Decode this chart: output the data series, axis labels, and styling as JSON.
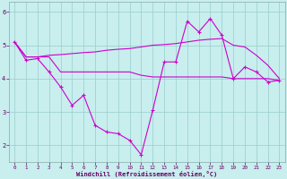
{
  "xlabel": "Windchill (Refroidissement éolien,°C)",
  "bg_color": "#c8eeee",
  "line_color": "#cc00cc",
  "grid_color": "#99cccc",
  "xlim": [
    -0.5,
    23.5
  ],
  "ylim": [
    1.5,
    6.3
  ],
  "yticks": [
    2,
    3,
    4,
    5,
    6
  ],
  "xticks": [
    0,
    1,
    2,
    3,
    4,
    5,
    6,
    7,
    8,
    9,
    10,
    11,
    12,
    13,
    14,
    15,
    16,
    17,
    18,
    19,
    20,
    21,
    22,
    23
  ],
  "line1_x": [
    0,
    1,
    2,
    3,
    4,
    5,
    6,
    7,
    8,
    9,
    10,
    11,
    12,
    13,
    14,
    15,
    16,
    17,
    18,
    19,
    20,
    21,
    22,
    23
  ],
  "line1_y": [
    5.1,
    4.55,
    4.6,
    4.2,
    3.75,
    3.2,
    3.5,
    2.6,
    2.4,
    2.35,
    2.15,
    1.72,
    3.05,
    4.5,
    4.5,
    5.72,
    5.4,
    5.8,
    5.3,
    4.0,
    4.35,
    4.2,
    3.9,
    3.95
  ],
  "line2_x": [
    0,
    1,
    2,
    3,
    4,
    5,
    6,
    7,
    8,
    9,
    10,
    11,
    12,
    13,
    14,
    15,
    16,
    17,
    18,
    19,
    20,
    21,
    22,
    23
  ],
  "line2_y": [
    5.1,
    4.65,
    4.65,
    4.65,
    4.2,
    4.2,
    4.2,
    4.2,
    4.2,
    4.2,
    4.2,
    4.1,
    4.05,
    4.05,
    4.05,
    4.05,
    4.05,
    4.05,
    4.05,
    4.0,
    4.0,
    4.0,
    4.0,
    3.95
  ],
  "line3_x": [
    0,
    1,
    2,
    3,
    4,
    5,
    6,
    7,
    8,
    9,
    10,
    11,
    12,
    13,
    14,
    15,
    16,
    17,
    18,
    19,
    20,
    21,
    22,
    23
  ],
  "line3_y": [
    5.1,
    4.65,
    4.65,
    4.7,
    4.72,
    4.75,
    4.78,
    4.8,
    4.85,
    4.88,
    4.9,
    4.95,
    5.0,
    5.02,
    5.05,
    5.1,
    5.15,
    5.18,
    5.2,
    5.0,
    4.95,
    4.7,
    4.4,
    4.0
  ]
}
